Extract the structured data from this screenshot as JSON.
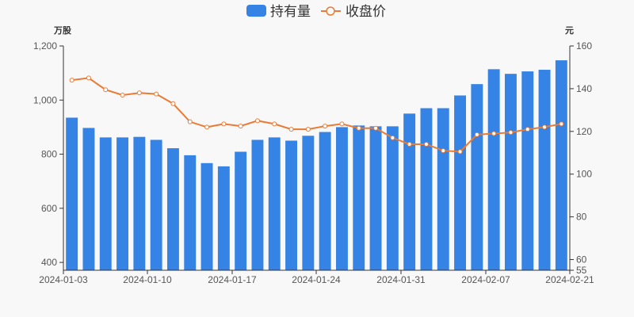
{
  "legend": {
    "bar_label": "持有量",
    "line_label": "收盘价"
  },
  "colors": {
    "bar": "#3583e4",
    "line": "#e97b35",
    "axis": "#333333",
    "text": "#555555",
    "background": "#f8f8f8"
  },
  "axes": {
    "left_unit": "万股",
    "right_unit": "元",
    "left_ticks": [
      "1,200",
      "1,000",
      "800",
      "600",
      "400"
    ],
    "right_ticks": [
      "160",
      "140",
      "120",
      "100",
      "80",
      "60",
      "55"
    ],
    "x_ticks": [
      "2024-01-03",
      "2024-01-10",
      "2024-01-17",
      "2024-01-24",
      "2024-01-31",
      "2024-02-07",
      "2024-02-21"
    ]
  },
  "chart_data": {
    "type": "bar",
    "title": "",
    "xlabel": "",
    "ylabel": "万股",
    "ylabel_right": "元",
    "ylim": [
      371,
      1200
    ],
    "ylim_right": [
      55,
      160
    ],
    "legend_position": "top-center",
    "grid": false,
    "x_tick_labels": [
      "2024-01-03",
      "2024-01-10",
      "2024-01-17",
      "2024-01-24",
      "2024-01-31",
      "2024-02-07",
      "2024-02-21"
    ],
    "categories": [
      "1",
      "2",
      "3",
      "4",
      "5",
      "6",
      "7",
      "8",
      "9",
      "10",
      "11",
      "12",
      "13",
      "14",
      "15",
      "16",
      "17",
      "18",
      "19",
      "20",
      "21",
      "22",
      "23",
      "24",
      "25",
      "26",
      "27",
      "28",
      "29",
      "30"
    ],
    "series": [
      {
        "name": "持有量",
        "type": "bar",
        "axis": "left",
        "values": [
          935,
          897,
          862,
          862,
          864,
          853,
          822,
          796,
          767,
          755,
          809,
          853,
          862,
          850,
          868,
          882,
          900,
          906,
          903,
          903,
          950,
          970,
          970,
          1017,
          1059,
          1114,
          1097,
          1106,
          1112,
          1147
        ]
      },
      {
        "name": "收盘价",
        "type": "line",
        "axis": "right",
        "values": [
          144,
          145,
          139.5,
          137,
          138,
          137.5,
          133,
          124.5,
          122,
          123.5,
          122.5,
          125,
          123.5,
          121,
          121,
          122.5,
          123.5,
          121.5,
          121.5,
          117,
          114,
          114,
          111,
          110.5,
          118.5,
          119,
          119.5,
          121,
          122,
          123.5
        ]
      }
    ]
  }
}
